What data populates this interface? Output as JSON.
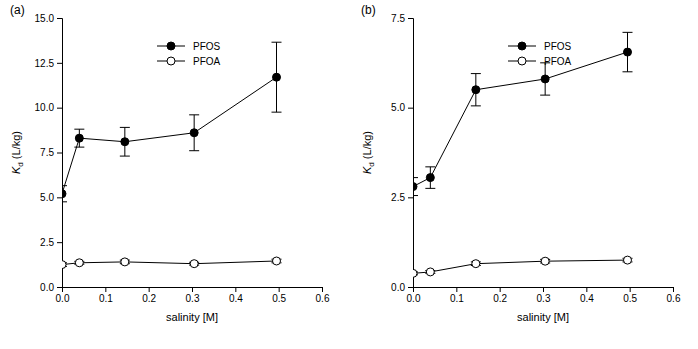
{
  "chart_data": [
    {
      "type": "line",
      "title": "(a)",
      "x_label": "salinity [M]",
      "y_label": "Kd (L/kg)",
      "x": [
        0.0,
        0.04,
        0.145,
        0.305,
        0.495
      ],
      "xlim": [
        0,
        0.6
      ],
      "xticks": [
        {
          "value": 0,
          "label": "0.0"
        },
        0.1,
        0.2,
        0.3,
        0.4,
        0.5,
        0.6
      ],
      "ylim": [
        0,
        15
      ],
      "yticks": [
        {
          "value": 0,
          "label": "0.0"
        },
        2.5,
        {
          "value": 5,
          "label": "5.0"
        },
        7.5,
        {
          "value": 10,
          "label": "10.0"
        },
        12.5,
        {
          "value": 15,
          "label": "15.0"
        }
      ],
      "legend": "upper left",
      "series": [
        {
          "name": "PFOS",
          "color": "#000000",
          "marker": "filled-circle",
          "values": [
            5.2,
            8.3,
            8.1,
            8.6,
            11.7
          ],
          "errors": [
            0.45,
            0.5,
            0.8,
            1.0,
            1.95
          ]
        },
        {
          "name": "PFOA",
          "color": "#000000",
          "marker": "open-circle",
          "values": [
            1.25,
            1.35,
            1.4,
            1.3,
            1.45
          ],
          "errors": [
            0.1,
            0.08,
            0.1,
            0.08,
            0.1
          ]
        }
      ]
    },
    {
      "type": "line",
      "title": "(b)",
      "x_label": "salinity [M]",
      "y_label": "Kd (L/kg)",
      "x": [
        0.0,
        0.04,
        0.145,
        0.305,
        0.495
      ],
      "xlim": [
        0,
        0.6
      ],
      "xticks": [
        {
          "value": 0,
          "label": "0.0"
        },
        0.1,
        0.2,
        0.3,
        0.4,
        0.5,
        0.6
      ],
      "ylim": [
        0,
        7.5
      ],
      "yticks": [
        {
          "value": 0,
          "label": "0.0"
        },
        2.5,
        {
          "value": 5,
          "label": "5.0"
        },
        7.5
      ],
      "legend": "upper left",
      "series": [
        {
          "name": "PFOS",
          "color": "#000000",
          "marker": "filled-circle",
          "values": [
            2.8,
            3.05,
            5.5,
            5.8,
            6.55
          ],
          "errors": [
            0.25,
            0.3,
            0.45,
            0.45,
            0.55
          ]
        },
        {
          "name": "PFOA",
          "color": "#000000",
          "marker": "open-circle",
          "values": [
            0.38,
            0.42,
            0.65,
            0.72,
            0.75
          ],
          "errors": [
            0.04,
            0.04,
            0.05,
            0.05,
            0.05
          ]
        }
      ]
    }
  ]
}
